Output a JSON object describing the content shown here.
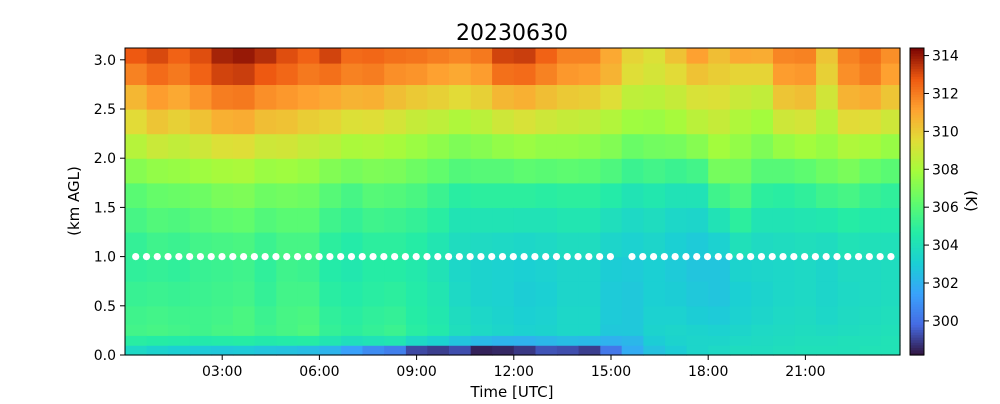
{
  "chart_data": {
    "type": "heatmap",
    "title": "20230630",
    "xlabel": "Time [UTC]",
    "ylabel": "(km AGL)",
    "x_unit": "hours UTC",
    "xlim": [
      0.0,
      23.92
    ],
    "ylim": [
      0.0,
      3.12
    ],
    "xticks": [
      3,
      6,
      9,
      12,
      15,
      18,
      21
    ],
    "xtick_labels": [
      "03:00",
      "06:00",
      "09:00",
      "12:00",
      "15:00",
      "18:00",
      "21:00"
    ],
    "yticks": [
      0.0,
      0.5,
      1.0,
      1.5,
      2.0,
      2.5,
      3.0
    ],
    "ytick_labels": [
      "0.0",
      "0.5",
      "1.0",
      "1.5",
      "2.0",
      "2.5",
      "3.0"
    ],
    "colorbar": {
      "label": "(K)",
      "vmin": 298.2,
      "vmax": 314.4,
      "ticks": [
        300,
        302,
        304,
        306,
        308,
        310,
        312,
        314
      ],
      "tick_labels": [
        "300",
        "302",
        "304",
        "306",
        "308",
        "310",
        "312",
        "314"
      ],
      "colormap": "turbo"
    },
    "heights_km": [
      0.05,
      0.15,
      0.25,
      0.375,
      0.625,
      0.875,
      1.125,
      1.375,
      1.625,
      1.875,
      2.125,
      2.375,
      2.625,
      2.875,
      3.06
    ],
    "column_profiles": [
      {
        "x_start": 0.0,
        "x_end": 0.67,
        "values": [
          303.6,
          304.8,
          305.5,
          305.4,
          305.2,
          305.0,
          305.1,
          305.6,
          306.1,
          307.2,
          308.4,
          309.6,
          310.6,
          311.9,
          312.8
        ]
      },
      {
        "x_start": 0.67,
        "x_end": 1.33,
        "values": [
          303.3,
          304.7,
          305.6,
          305.5,
          305.3,
          305.1,
          305.4,
          305.9,
          306.4,
          307.5,
          308.9,
          310.2,
          311.3,
          312.4,
          313.1
        ]
      },
      {
        "x_start": 1.33,
        "x_end": 2.0,
        "values": [
          303.1,
          304.6,
          305.5,
          305.4,
          305.2,
          305.0,
          305.3,
          305.8,
          306.5,
          307.6,
          308.7,
          309.9,
          311.0,
          312.1,
          312.6
        ]
      },
      {
        "x_start": 2.0,
        "x_end": 2.67,
        "values": [
          302.9,
          304.5,
          305.4,
          305.4,
          305.3,
          305.2,
          305.5,
          306.0,
          306.6,
          307.8,
          309.0,
          310.3,
          311.5,
          312.6,
          313.0
        ]
      },
      {
        "x_start": 2.67,
        "x_end": 3.33,
        "values": [
          302.8,
          304.6,
          305.6,
          305.5,
          305.4,
          305.3,
          305.6,
          306.2,
          306.9,
          308.0,
          309.4,
          310.8,
          312.0,
          313.2,
          313.8
        ]
      },
      {
        "x_start": 3.33,
        "x_end": 4.0,
        "values": [
          302.9,
          304.7,
          305.7,
          305.7,
          305.5,
          305.4,
          305.7,
          306.3,
          307.0,
          308.1,
          309.5,
          310.9,
          312.1,
          313.3,
          314.0
        ]
      },
      {
        "x_start": 4.0,
        "x_end": 4.67,
        "values": [
          302.7,
          304.5,
          305.4,
          305.3,
          305.1,
          305.0,
          305.3,
          305.9,
          306.6,
          307.7,
          309.0,
          310.4,
          311.6,
          312.8,
          313.6
        ]
      },
      {
        "x_start": 4.67,
        "x_end": 5.33,
        "values": [
          302.6,
          304.6,
          305.6,
          305.6,
          305.5,
          305.4,
          305.6,
          306.1,
          306.7,
          307.8,
          309.1,
          310.3,
          311.4,
          312.5,
          313.0
        ]
      },
      {
        "x_start": 5.33,
        "x_end": 6.0,
        "values": [
          302.4,
          304.7,
          305.8,
          305.7,
          305.5,
          305.3,
          305.6,
          306.1,
          306.6,
          307.6,
          308.8,
          310.0,
          311.2,
          312.1,
          312.6
        ]
      },
      {
        "x_start": 6.0,
        "x_end": 6.67,
        "values": [
          302.1,
          304.3,
          305.1,
          305.0,
          304.8,
          304.6,
          304.9,
          305.4,
          306.0,
          307.1,
          308.5,
          309.8,
          311.0,
          312.3,
          313.2
        ]
      },
      {
        "x_start": 6.67,
        "x_end": 7.33,
        "values": [
          301.4,
          303.9,
          304.9,
          304.8,
          304.6,
          304.4,
          304.6,
          305.1,
          305.6,
          306.8,
          308.1,
          309.4,
          310.7,
          311.9,
          312.4
        ]
      },
      {
        "x_start": 7.33,
        "x_end": 8.0,
        "values": [
          300.8,
          304.1,
          305.1,
          305.0,
          304.8,
          304.7,
          304.9,
          305.4,
          306.0,
          307.0,
          308.2,
          309.5,
          310.8,
          312.0,
          312.5
        ]
      },
      {
        "x_start": 8.0,
        "x_end": 8.67,
        "values": [
          300.4,
          304.3,
          305.3,
          305.1,
          304.9,
          304.7,
          304.9,
          305.3,
          305.9,
          306.9,
          308.0,
          309.2,
          310.4,
          311.6,
          312.3
        ]
      },
      {
        "x_start": 8.67,
        "x_end": 9.33,
        "values": [
          299.2,
          303.6,
          304.8,
          304.7,
          304.6,
          304.5,
          304.7,
          305.1,
          305.7,
          306.6,
          307.7,
          308.8,
          310.1,
          311.5,
          312.2
        ]
      },
      {
        "x_start": 9.33,
        "x_end": 10.0,
        "values": [
          299.0,
          303.2,
          304.5,
          304.4,
          304.3,
          304.1,
          304.3,
          304.8,
          305.3,
          306.3,
          307.4,
          308.6,
          309.9,
          311.2,
          312.0
        ]
      },
      {
        "x_start": 10.0,
        "x_end": 10.67,
        "values": [
          299.3,
          302.7,
          303.9,
          303.8,
          303.6,
          303.5,
          303.8,
          304.2,
          304.8,
          305.9,
          307.0,
          308.2,
          309.6,
          311.0,
          311.8
        ]
      },
      {
        "x_start": 10.67,
        "x_end": 11.33,
        "values": [
          298.5,
          302.3,
          303.6,
          303.5,
          303.3,
          303.3,
          303.7,
          304.2,
          304.9,
          306.0,
          307.2,
          308.5,
          309.9,
          311.3,
          312.1
        ]
      },
      {
        "x_start": 11.33,
        "x_end": 12.0,
        "values": [
          298.6,
          302.1,
          303.4,
          303.3,
          303.2,
          303.2,
          303.6,
          304.2,
          304.9,
          306.0,
          307.5,
          309.0,
          310.6,
          312.3,
          313.2
        ]
      },
      {
        "x_start": 12.0,
        "x_end": 12.67,
        "values": [
          298.9,
          302.0,
          303.2,
          303.1,
          303.0,
          303.1,
          303.5,
          304.1,
          304.9,
          306.2,
          307.7,
          309.3,
          310.8,
          312.4,
          313.3
        ]
      },
      {
        "x_start": 12.67,
        "x_end": 13.33,
        "values": [
          299.4,
          302.2,
          303.3,
          303.2,
          303.1,
          303.2,
          303.6,
          304.1,
          304.8,
          306.1,
          307.5,
          309.0,
          310.4,
          311.9,
          312.6
        ]
      },
      {
        "x_start": 13.33,
        "x_end": 14.0,
        "values": [
          299.3,
          302.4,
          303.5,
          303.5,
          303.4,
          303.4,
          303.8,
          304.3,
          304.9,
          306.2,
          307.5,
          308.8,
          310.1,
          311.4,
          311.9
        ]
      },
      {
        "x_start": 14.0,
        "x_end": 14.67,
        "values": [
          299.0,
          302.3,
          303.5,
          303.5,
          303.4,
          303.4,
          303.8,
          304.3,
          304.9,
          306.1,
          307.4,
          308.7,
          310.0,
          311.3,
          311.9
        ]
      },
      {
        "x_start": 14.67,
        "x_end": 15.33,
        "values": [
          300.2,
          302.0,
          302.8,
          302.9,
          302.9,
          303.0,
          303.4,
          303.9,
          304.6,
          305.8,
          307.1,
          308.3,
          309.5,
          310.7,
          311.0
        ]
      },
      {
        "x_start": 15.33,
        "x_end": 16.0,
        "values": [
          301.8,
          302.2,
          302.8,
          302.8,
          302.8,
          302.9,
          303.2,
          303.6,
          304.2,
          305.3,
          306.5,
          307.8,
          308.6,
          309.5,
          309.8
        ]
      },
      {
        "x_start": 16.0,
        "x_end": 16.67,
        "values": [
          302.6,
          303.0,
          303.3,
          303.2,
          303.1,
          303.1,
          303.4,
          303.8,
          304.4,
          305.5,
          306.7,
          307.7,
          308.5,
          309.2,
          309.4
        ]
      },
      {
        "x_start": 16.67,
        "x_end": 17.33,
        "values": [
          303.0,
          303.3,
          303.4,
          303.2,
          303.0,
          302.9,
          303.1,
          303.5,
          304.1,
          305.3,
          306.8,
          308.0,
          308.8,
          309.6,
          310.3
        ]
      },
      {
        "x_start": 17.33,
        "x_end": 18.0,
        "values": [
          303.4,
          303.4,
          303.3,
          303.0,
          302.8,
          302.7,
          302.9,
          303.4,
          304.1,
          305.5,
          307.2,
          308.5,
          309.3,
          310.3,
          311.2
        ]
      },
      {
        "x_start": 18.0,
        "x_end": 18.67,
        "values": [
          303.6,
          303.4,
          303.2,
          302.9,
          302.7,
          302.7,
          303.2,
          304.1,
          305.4,
          306.8,
          307.9,
          308.8,
          309.4,
          310.0,
          310.4
        ]
      },
      {
        "x_start": 18.67,
        "x_end": 19.33,
        "values": [
          303.8,
          303.6,
          303.4,
          303.2,
          303.1,
          303.3,
          304.0,
          304.9,
          305.8,
          306.7,
          307.5,
          308.2,
          308.9,
          309.8,
          311.0
        ]
      },
      {
        "x_start": 19.33,
        "x_end": 20.0,
        "values": [
          303.8,
          303.7,
          303.6,
          303.4,
          303.3,
          303.4,
          303.7,
          304.2,
          304.9,
          306.0,
          307.0,
          307.9,
          308.7,
          309.8,
          310.9
        ]
      },
      {
        "x_start": 20.0,
        "x_end": 20.67,
        "values": [
          303.9,
          303.8,
          303.7,
          303.6,
          303.5,
          303.5,
          303.8,
          304.2,
          304.8,
          306.0,
          307.6,
          309.0,
          310.2,
          311.3,
          311.8
        ]
      },
      {
        "x_start": 20.67,
        "x_end": 21.33,
        "values": [
          304.0,
          303.9,
          303.8,
          303.7,
          303.6,
          303.6,
          303.9,
          304.3,
          305.0,
          306.2,
          307.9,
          309.2,
          310.4,
          311.4,
          311.9
        ]
      },
      {
        "x_start": 21.33,
        "x_end": 22.0,
        "values": [
          304.0,
          303.9,
          303.7,
          303.5,
          303.4,
          303.4,
          303.8,
          304.4,
          305.4,
          306.6,
          307.6,
          308.4,
          309.1,
          309.9,
          310.2
        ]
      },
      {
        "x_start": 22.0,
        "x_end": 22.67,
        "values": [
          304.0,
          304.0,
          303.8,
          303.7,
          303.6,
          303.7,
          304.1,
          304.7,
          305.6,
          306.9,
          308.2,
          309.6,
          310.7,
          311.6,
          311.9
        ]
      },
      {
        "x_start": 22.67,
        "x_end": 23.33,
        "values": [
          304.1,
          304.0,
          303.9,
          303.8,
          303.7,
          303.7,
          304.0,
          304.5,
          305.2,
          306.4,
          308.0,
          309.5,
          310.9,
          312.0,
          312.3
        ]
      },
      {
        "x_start": 23.33,
        "x_end": 23.92,
        "values": [
          304.1,
          304.1,
          304.0,
          303.9,
          303.8,
          303.8,
          304.0,
          304.5,
          305.0,
          306.1,
          307.6,
          309.0,
          310.2,
          311.2,
          311.6
        ]
      }
    ],
    "marker_series": {
      "y": 1.0,
      "color": "#ffffff",
      "x_start": 0.33,
      "x_end": 23.92,
      "step_hours": 0.333,
      "gap": [
        15.0,
        15.5
      ]
    }
  }
}
